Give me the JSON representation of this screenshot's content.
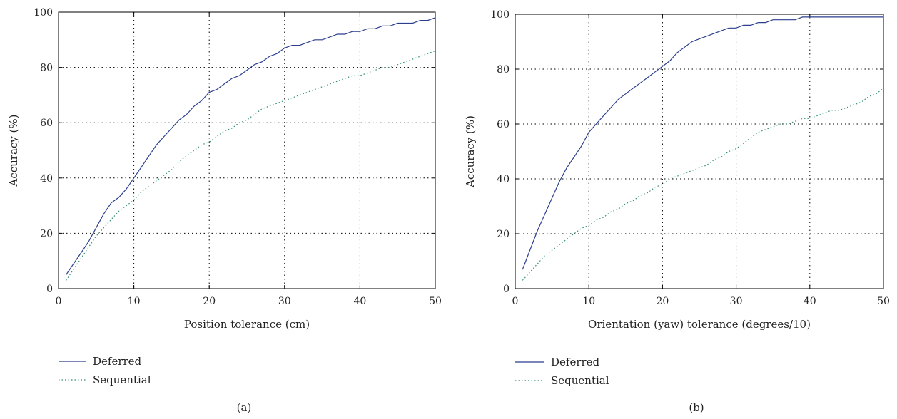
{
  "chart_data": [
    {
      "type": "line",
      "panel_label": "(a)",
      "xlabel": "Position tolerance (cm)",
      "ylabel": "Accuracy (%)",
      "xlim": [
        0,
        50
      ],
      "ylim": [
        0,
        100
      ],
      "xticks": [
        0,
        10,
        20,
        30,
        40,
        50
      ],
      "yticks": [
        0,
        20,
        40,
        60,
        80,
        100
      ],
      "grid": true,
      "legend_position": "below",
      "series": [
        {
          "name": "Deferred",
          "style": "solid",
          "color": "#2b3f8f",
          "x": [
            1,
            2,
            3,
            4,
            5,
            6,
            7,
            8,
            9,
            10,
            11,
            12,
            13,
            14,
            15,
            16,
            17,
            18,
            19,
            20,
            21,
            22,
            23,
            24,
            25,
            26,
            27,
            28,
            29,
            30,
            31,
            32,
            33,
            34,
            35,
            36,
            37,
            38,
            39,
            40,
            41,
            42,
            43,
            44,
            45,
            46,
            47,
            48,
            49,
            50
          ],
          "y": [
            5,
            9,
            13,
            17,
            22,
            27,
            31,
            33,
            36,
            40,
            44,
            48,
            52,
            55,
            58,
            61,
            63,
            66,
            68,
            71,
            72,
            74,
            76,
            77,
            79,
            81,
            82,
            84,
            85,
            87,
            88,
            88,
            89,
            90,
            90,
            91,
            92,
            92,
            93,
            93,
            94,
            94,
            95,
            95,
            96,
            96,
            96,
            97,
            97,
            98
          ]
        },
        {
          "name": "Sequential",
          "style": "dotted",
          "color": "#2f8f6f",
          "x": [
            1,
            2,
            3,
            4,
            5,
            6,
            7,
            8,
            9,
            10,
            11,
            12,
            13,
            14,
            15,
            16,
            17,
            18,
            19,
            20,
            21,
            22,
            23,
            24,
            25,
            26,
            27,
            28,
            29,
            30,
            31,
            32,
            33,
            34,
            35,
            36,
            37,
            38,
            39,
            40,
            41,
            42,
            43,
            44,
            45,
            46,
            47,
            48,
            49,
            50
          ],
          "y": [
            3,
            7,
            11,
            15,
            19,
            22,
            25,
            28,
            30,
            32,
            35,
            37,
            39,
            41,
            43,
            46,
            48,
            50,
            52,
            53,
            55,
            57,
            58,
            60,
            61,
            63,
            65,
            66,
            67,
            68,
            69,
            70,
            71,
            72,
            73,
            74,
            75,
            76,
            77,
            77,
            78,
            79,
            80,
            80,
            81,
            82,
            83,
            84,
            85,
            86
          ]
        }
      ]
    },
    {
      "type": "line",
      "panel_label": "(b)",
      "xlabel": "Orientation (yaw) tolerance (degrees/10)",
      "ylabel": "Accuracy (%)",
      "xlim": [
        0,
        50
      ],
      "ylim": [
        0,
        100
      ],
      "xticks": [
        0,
        10,
        20,
        30,
        40,
        50
      ],
      "yticks": [
        0,
        20,
        40,
        60,
        80,
        100
      ],
      "grid": true,
      "legend_position": "below",
      "series": [
        {
          "name": "Deferred",
          "style": "solid",
          "color": "#2b3f8f",
          "x": [
            1,
            2,
            3,
            4,
            5,
            6,
            7,
            8,
            9,
            10,
            11,
            12,
            13,
            14,
            15,
            16,
            17,
            18,
            19,
            20,
            21,
            22,
            23,
            24,
            25,
            26,
            27,
            28,
            29,
            30,
            31,
            32,
            33,
            34,
            35,
            36,
            37,
            38,
            39,
            40,
            41,
            42,
            43,
            44,
            45,
            46,
            47,
            48,
            49,
            50
          ],
          "y": [
            7,
            14,
            21,
            27,
            33,
            39,
            44,
            48,
            52,
            57,
            60,
            63,
            66,
            69,
            71,
            73,
            75,
            77,
            79,
            81,
            83,
            86,
            88,
            90,
            91,
            92,
            93,
            94,
            95,
            95,
            96,
            96,
            97,
            97,
            98,
            98,
            98,
            98,
            99,
            99,
            99,
            99,
            99,
            99,
            99,
            99,
            99,
            99,
            99,
            99
          ]
        },
        {
          "name": "Sequential",
          "style": "dotted",
          "color": "#2f8f6f",
          "x": [
            1,
            2,
            3,
            4,
            5,
            6,
            7,
            8,
            9,
            10,
            11,
            12,
            13,
            14,
            15,
            16,
            17,
            18,
            19,
            20,
            21,
            22,
            23,
            24,
            25,
            26,
            27,
            28,
            29,
            30,
            31,
            32,
            33,
            34,
            35,
            36,
            37,
            38,
            39,
            40,
            41,
            42,
            43,
            44,
            45,
            46,
            47,
            48,
            49,
            50
          ],
          "y": [
            3,
            6,
            9,
            12,
            14,
            16,
            18,
            20,
            22,
            23,
            25,
            26,
            28,
            29,
            31,
            32,
            34,
            35,
            37,
            38,
            40,
            41,
            42,
            43,
            44,
            45,
            47,
            48,
            50,
            51,
            53,
            55,
            57,
            58,
            59,
            60,
            60,
            61,
            62,
            62,
            63,
            64,
            65,
            65,
            66,
            67,
            68,
            70,
            71,
            73
          ]
        }
      ]
    }
  ]
}
